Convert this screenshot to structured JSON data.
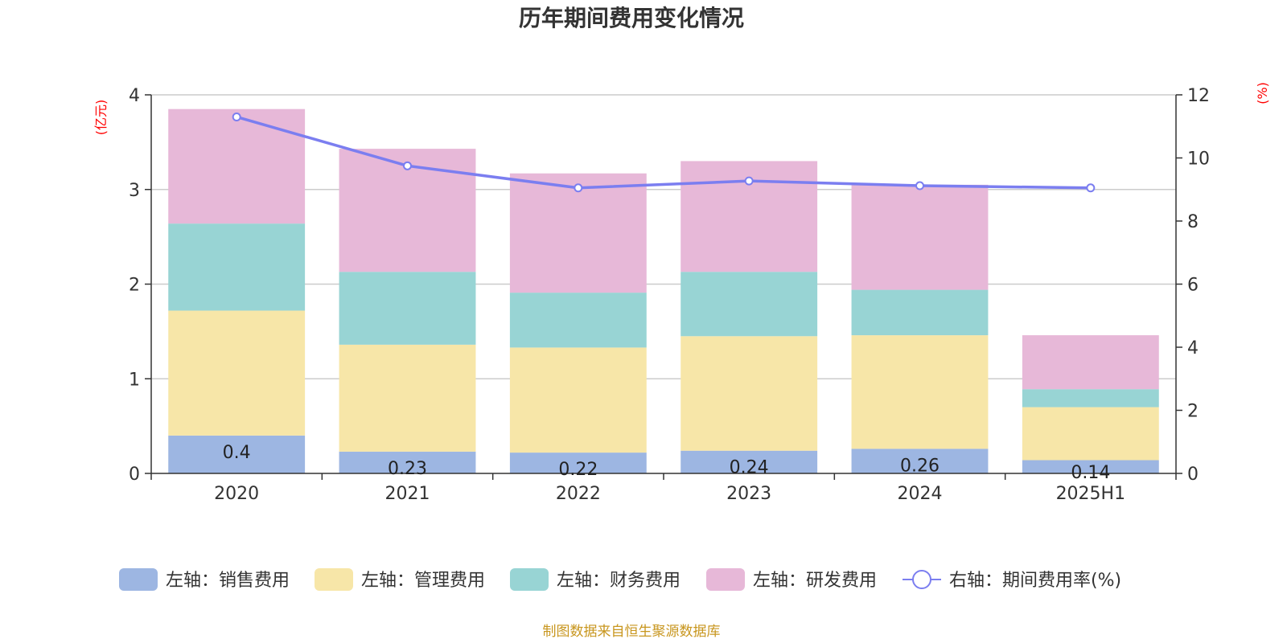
{
  "chart_data": {
    "type": "bar",
    "title": "历年期间费用变化情况",
    "categories": [
      "2020",
      "2021",
      "2022",
      "2023",
      "2024",
      "2025H1"
    ],
    "left_axis": {
      "unit_label": "(亿元)",
      "ylim": [
        0,
        4
      ],
      "ticks": [
        "0",
        "1",
        "2",
        "3",
        "4"
      ]
    },
    "right_axis": {
      "unit_label": "(%)",
      "ylim": [
        0,
        12
      ],
      "ticks": [
        "0",
        "2",
        "4",
        "6",
        "8",
        "10",
        "12"
      ]
    },
    "series": [
      {
        "name": "左轴：销售费用",
        "kind": "bar",
        "axis": "left",
        "color": "#9db6e2",
        "values": [
          0.4,
          0.23,
          0.22,
          0.24,
          0.26,
          0.14
        ],
        "labels": [
          "0.4",
          "0.23",
          "0.22",
          "0.24",
          "0.26",
          "0.14"
        ]
      },
      {
        "name": "左轴：管理费用",
        "kind": "bar",
        "axis": "left",
        "color": "#f7e6a8",
        "values": [
          1.32,
          1.13,
          1.11,
          1.21,
          1.2,
          0.56
        ]
      },
      {
        "name": "左轴：财务费用",
        "kind": "bar",
        "axis": "left",
        "color": "#98d4d4",
        "values": [
          0.92,
          0.77,
          0.58,
          0.68,
          0.48,
          0.19
        ]
      },
      {
        "name": "左轴：研发费用",
        "kind": "bar",
        "axis": "left",
        "color": "#e7b8d8",
        "values": [
          1.21,
          1.3,
          1.26,
          1.17,
          1.11,
          0.57
        ]
      },
      {
        "name": "右轴：期间费用率(%)",
        "kind": "line",
        "axis": "right",
        "color": "#7b7ef0",
        "values": [
          11.3,
          9.75,
          9.05,
          9.27,
          9.12,
          9.05
        ]
      }
    ],
    "grid": true,
    "legend_position": "bottom",
    "source_note": "制图数据来自恒生聚源数据库"
  }
}
